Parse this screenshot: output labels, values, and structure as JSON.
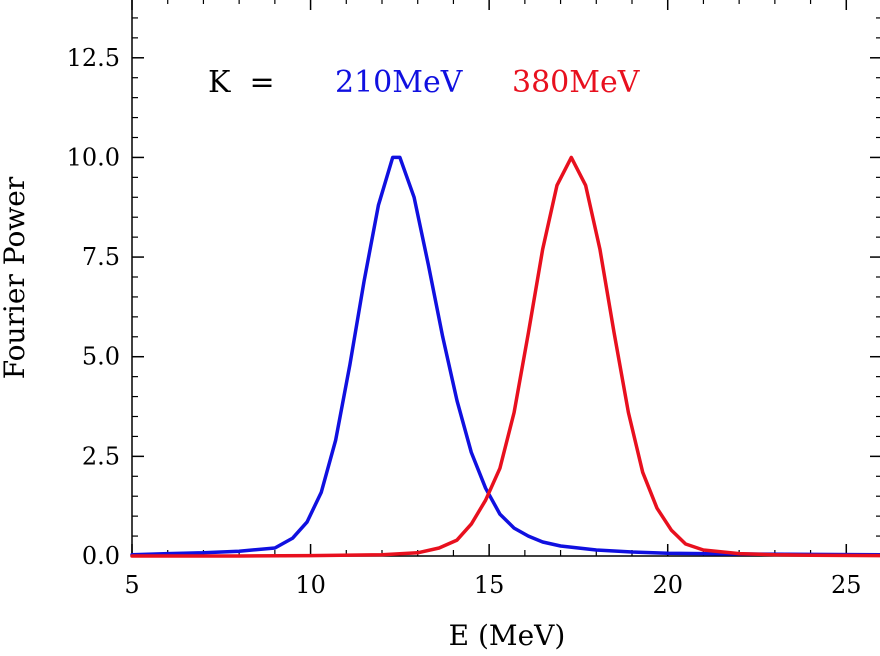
{
  "chart_data": {
    "type": "line",
    "title": "",
    "xlabel": "E (MeV)",
    "ylabel": "Fourier Power",
    "xlim": [
      5,
      26
    ],
    "ylim": [
      0,
      14
    ],
    "xticks": [
      5,
      10,
      15,
      20,
      25
    ],
    "xtick_labels": [
      "5",
      "10",
      "15",
      "20",
      "25"
    ],
    "yticks": [
      0,
      2.5,
      5,
      7.5,
      10,
      12.5
    ],
    "ytick_labels": [
      "0.0",
      "2.5",
      "5.0",
      "7.5",
      "10.0",
      "12.5"
    ],
    "grid": false,
    "legend_prefix": "K  =",
    "series": [
      {
        "name": "210MeV",
        "color": "#1010e0",
        "x": [
          5,
          6,
          7,
          8,
          9,
          9.5,
          9.9,
          10.3,
          10.7,
          11.1,
          11.5,
          11.9,
          12.3,
          12.5,
          12.9,
          13.3,
          13.7,
          14.1,
          14.5,
          14.9,
          15.3,
          15.7,
          16.1,
          16.5,
          17,
          18,
          19,
          20,
          22,
          24,
          26
        ],
        "y": [
          0.03,
          0.06,
          0.08,
          0.12,
          0.2,
          0.45,
          0.85,
          1.6,
          2.9,
          4.8,
          6.9,
          8.8,
          10.0,
          10.0,
          9.0,
          7.3,
          5.5,
          3.9,
          2.6,
          1.7,
          1.05,
          0.7,
          0.5,
          0.35,
          0.25,
          0.15,
          0.1,
          0.07,
          0.05,
          0.04,
          0.03
        ]
      },
      {
        "name": "380MeV",
        "color": "#e8101e",
        "x": [
          5,
          8,
          10,
          12,
          13,
          13.6,
          14.1,
          14.5,
          14.9,
          15.3,
          15.7,
          16.1,
          16.5,
          16.9,
          17.3,
          17.7,
          18.1,
          18.5,
          18.9,
          19.3,
          19.7,
          20.1,
          20.5,
          21,
          22,
          23,
          24,
          26
        ],
        "y": [
          0.0,
          0.0,
          0.01,
          0.03,
          0.08,
          0.2,
          0.4,
          0.8,
          1.4,
          2.2,
          3.6,
          5.6,
          7.7,
          9.3,
          10.0,
          9.3,
          7.7,
          5.6,
          3.6,
          2.1,
          1.2,
          0.65,
          0.3,
          0.15,
          0.06,
          0.03,
          0.02,
          0.01
        ]
      }
    ]
  }
}
